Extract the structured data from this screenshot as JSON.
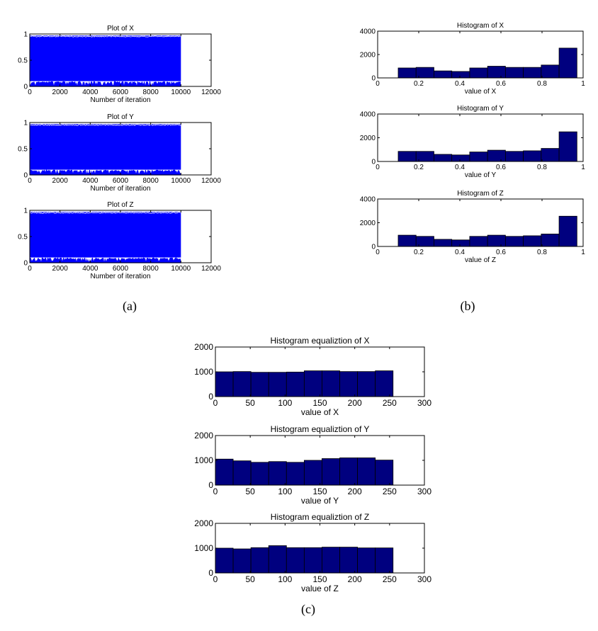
{
  "captions": {
    "a": "(a)",
    "b": "(b)",
    "c": "(c)"
  },
  "colors": {
    "signal": "#0000ff",
    "bar": "#00007f",
    "bar_edge": "#000000",
    "axis": "#000000"
  },
  "chart_data": [
    {
      "id": "plotX",
      "type": "line",
      "title": "Plot of X",
      "xlabel": "Number of iteration",
      "ylabel": "",
      "xlim": [
        0,
        12000
      ],
      "ylim": [
        0,
        1
      ],
      "xticks": [
        0,
        2000,
        4000,
        6000,
        8000,
        10000,
        12000
      ],
      "yticks": [
        0,
        0.5,
        1
      ],
      "series": [
        {
          "x_range": [
            0,
            10000
          ],
          "y_min": 0.1,
          "y_max": 0.97
        }
      ]
    },
    {
      "id": "plotY",
      "type": "line",
      "title": "Plot of Y",
      "xlabel": "Number of iteration",
      "ylabel": "",
      "xlim": [
        0,
        12000
      ],
      "ylim": [
        0,
        1
      ],
      "xticks": [
        0,
        2000,
        4000,
        6000,
        8000,
        10000,
        12000
      ],
      "yticks": [
        0,
        0.5,
        1
      ],
      "series": [
        {
          "x_range": [
            0,
            10000
          ],
          "y_min": 0.1,
          "y_max": 0.97
        }
      ]
    },
    {
      "id": "plotZ",
      "type": "line",
      "title": "Plot of Z",
      "xlabel": "Number of iteration",
      "ylabel": "",
      "xlim": [
        0,
        12000
      ],
      "ylim": [
        0,
        1
      ],
      "xticks": [
        0,
        2000,
        4000,
        6000,
        8000,
        10000,
        12000
      ],
      "yticks": [
        0,
        0.5,
        1
      ],
      "series": [
        {
          "x_range": [
            0,
            10000
          ],
          "y_min": 0.1,
          "y_max": 0.97
        }
      ]
    },
    {
      "id": "histX",
      "type": "bar",
      "title": "Histogram of X",
      "xlabel": "value of X",
      "ylabel": "",
      "xlim": [
        0,
        1
      ],
      "ylim": [
        0,
        4000
      ],
      "xticks": [
        0,
        0.2,
        0.4,
        0.6,
        0.8,
        1
      ],
      "yticks": [
        0,
        2000,
        4000
      ],
      "bin_range": [
        0.1,
        0.97
      ],
      "values": [
        850,
        900,
        600,
        550,
        850,
        1000,
        900,
        900,
        1100,
        2550
      ]
    },
    {
      "id": "histY",
      "type": "bar",
      "title": "Histogram of Y",
      "xlabel": "value of Y",
      "ylabel": "",
      "xlim": [
        0,
        1
      ],
      "ylim": [
        0,
        4000
      ],
      "xticks": [
        0,
        0.2,
        0.4,
        0.6,
        0.8,
        1
      ],
      "yticks": [
        0,
        2000,
        4000
      ],
      "bin_range": [
        0.1,
        0.97
      ],
      "values": [
        850,
        850,
        600,
        550,
        800,
        950,
        850,
        900,
        1100,
        2500
      ]
    },
    {
      "id": "histZ",
      "type": "bar",
      "title": "Histogram of Z",
      "xlabel": "value of Z",
      "ylabel": "",
      "xlim": [
        0,
        1
      ],
      "ylim": [
        0,
        4000
      ],
      "xticks": [
        0,
        0.2,
        0.4,
        0.6,
        0.8,
        1
      ],
      "yticks": [
        0,
        2000,
        4000
      ],
      "bin_range": [
        0.1,
        0.97
      ],
      "values": [
        950,
        850,
        600,
        550,
        850,
        950,
        850,
        900,
        1050,
        2550
      ]
    },
    {
      "id": "eqX",
      "type": "bar",
      "title": "Histogram equaliztion of X",
      "xlabel": "value of X",
      "ylabel": "",
      "xlim": [
        0,
        300
      ],
      "ylim": [
        0,
        2000
      ],
      "xticks": [
        0,
        50,
        100,
        150,
        200,
        250,
        300
      ],
      "yticks": [
        0,
        1000,
        2000
      ],
      "bin_range": [
        0,
        255
      ],
      "values": [
        1000,
        1010,
        980,
        980,
        990,
        1040,
        1040,
        1010,
        1010,
        1040
      ]
    },
    {
      "id": "eqY",
      "type": "bar",
      "title": "Histogram equaliztion of Y",
      "xlabel": "value of Y",
      "ylabel": "",
      "xlim": [
        0,
        300
      ],
      "ylim": [
        0,
        2000
      ],
      "xticks": [
        0,
        50,
        100,
        150,
        200,
        250,
        300
      ],
      "yticks": [
        0,
        1000,
        2000
      ],
      "bin_range": [
        0,
        255
      ],
      "values": [
        1050,
        980,
        920,
        950,
        920,
        1000,
        1070,
        1100,
        1100,
        1010
      ]
    },
    {
      "id": "eqZ",
      "type": "bar",
      "title": "Histogram equaliztion of Z",
      "xlabel": "value of Z",
      "ylabel": "",
      "xlim": [
        0,
        300
      ],
      "ylim": [
        0,
        2000
      ],
      "xticks": [
        0,
        50,
        100,
        150,
        200,
        250,
        300
      ],
      "yticks": [
        0,
        1000,
        2000
      ],
      "bin_range": [
        0,
        255
      ],
      "values": [
        1000,
        970,
        1020,
        1100,
        1020,
        1020,
        1040,
        1040,
        1010,
        1010
      ]
    }
  ]
}
